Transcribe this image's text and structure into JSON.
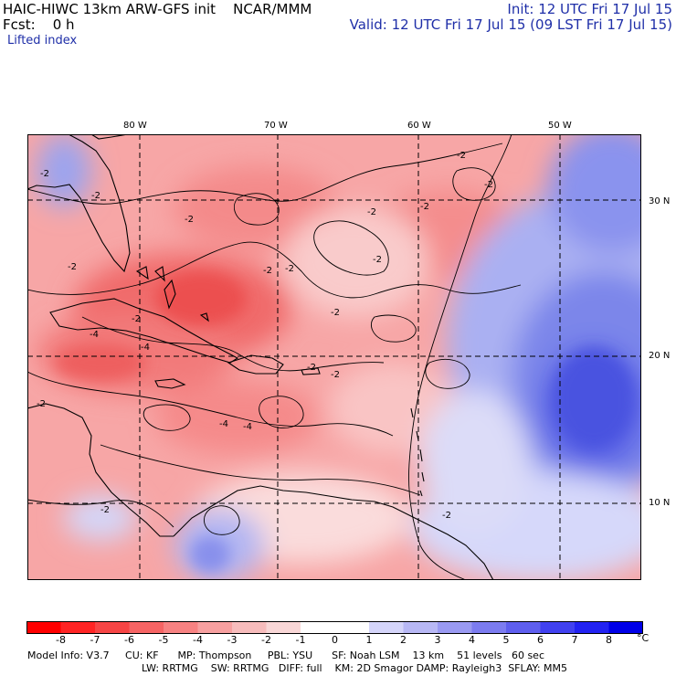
{
  "header": {
    "model_line": "HAIC-HIWC 13km ARW-GFS init    NCAR/MMM",
    "init_line": "Init: 12 UTC Fri 17 Jul 15",
    "fcst_line": "Fcst:    0 h",
    "valid_line": "Valid: 12 UTC Fri 17 Jul 15 (09 LST Fri 17 Jul 15)",
    "field_name": "Lifted index"
  },
  "map": {
    "lon_labels": [
      "80 W",
      "70 W",
      "60 W",
      "50 W"
    ],
    "lat_labels": [
      "30 N",
      "20 N",
      "10 N"
    ],
    "contour_labels": [
      "-2",
      "-2",
      "-2",
      "-2",
      "-2",
      "-2",
      "-2",
      "-2",
      "-2",
      "-2",
      "-2",
      "-2",
      "-2",
      "-2",
      "-2",
      "-2",
      "-4",
      "-4",
      "-4",
      "-4",
      "-2",
      "-2"
    ]
  },
  "colorbar": {
    "labels": [
      "-8",
      "-7",
      "-6",
      "-5",
      "-4",
      "-3",
      "-2",
      "-1",
      "0",
      "1",
      "2",
      "3",
      "4",
      "5",
      "6",
      "7",
      "8"
    ],
    "unit": "°C",
    "colors": [
      "#ff0000",
      "#ff2424",
      "#f64545",
      "#f66464",
      "#f78282",
      "#f7a0a0",
      "#f7bcbc",
      "#f9d7d7",
      "#ffffff",
      "#ffffff",
      "#d5d5fa",
      "#b8b8f5",
      "#9a9af2",
      "#7c7cf0",
      "#5e5eee",
      "#4141f0",
      "#2222f2",
      "#0000e8"
    ]
  },
  "footer": {
    "line1": "Model Info: V3.7     CU: KF      MP: Thompson     PBL: YSU      SF: Noah LSM    13 km    51 levels   60 sec",
    "line2": "LW: RRTMG    SW: RRTMG   DIFF: full    KM: 2D Smagor DAMP: Rayleigh3  SFLAY: MM5"
  }
}
